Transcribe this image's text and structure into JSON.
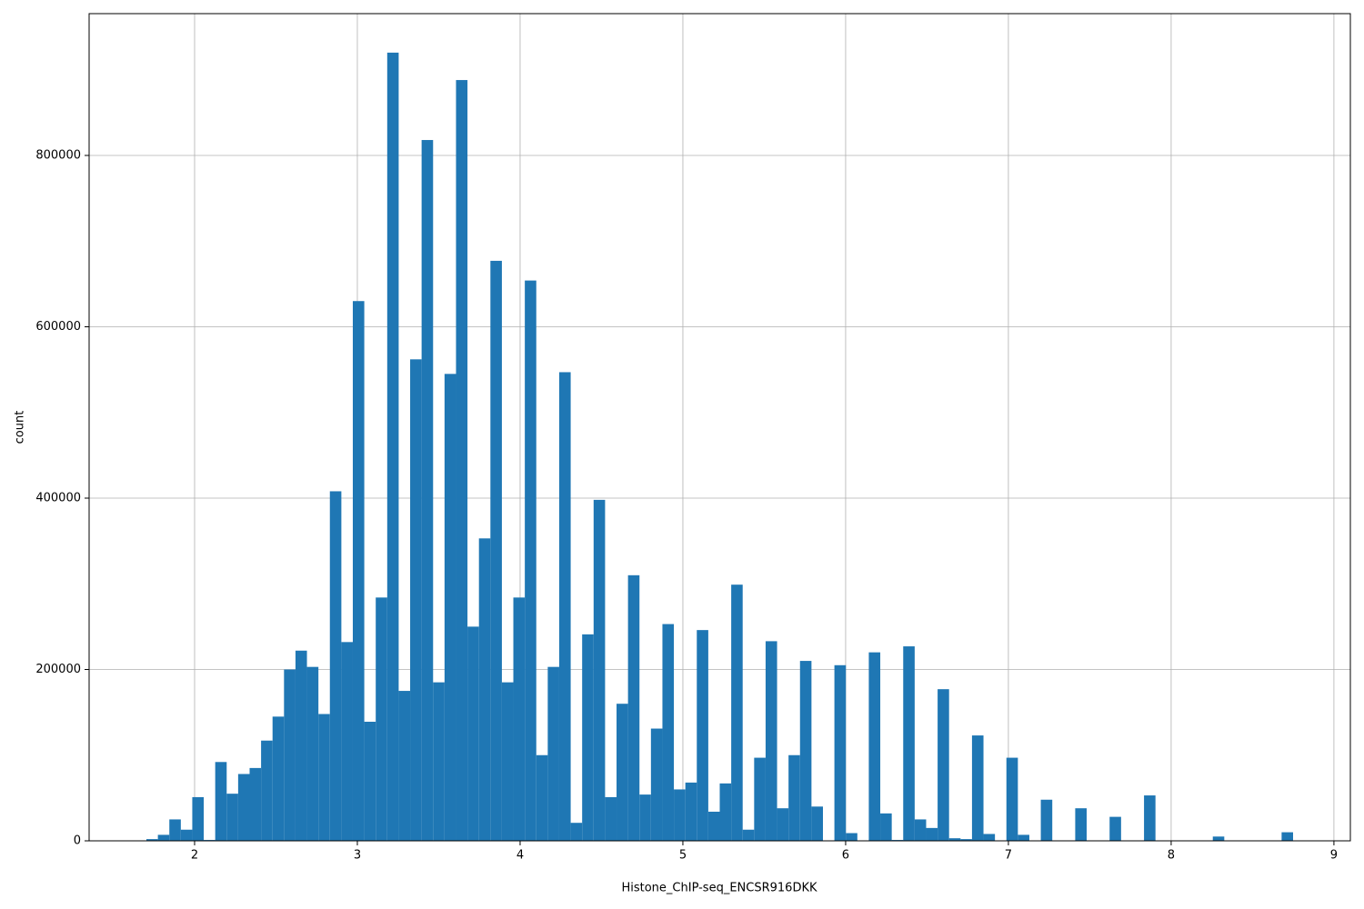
{
  "chart_data": {
    "type": "histogram",
    "x_label": "Histone_ChIP-seq_ENCSR916DKK",
    "y_label": "count",
    "color": "#1f77b4",
    "grid": true,
    "xlim": [
      1.352,
      9.101
    ],
    "ylim": [
      0,
      965517
    ],
    "xticks": [
      2,
      3,
      4,
      5,
      6,
      7,
      8,
      9
    ],
    "yticks": [
      0,
      200000,
      400000,
      600000,
      800000
    ],
    "bins": [
      1.704,
      1.7745,
      1.8449,
      1.9154,
      1.9858,
      2.0563,
      2.1267,
      2.1972,
      2.2676,
      2.3381,
      2.4085,
      2.479,
      2.5494,
      2.6199,
      2.6903,
      2.7608,
      2.8312,
      2.9017,
      2.9721,
      3.0426,
      3.113,
      3.1835,
      3.2539,
      3.3244,
      3.3948,
      3.4653,
      3.5357,
      3.6062,
      3.6766,
      3.7471,
      3.8175,
      3.888,
      3.9584,
      4.0289,
      4.0993,
      4.1698,
      4.2402,
      4.3107,
      4.3811,
      4.4516,
      4.522,
      4.5925,
      4.6629,
      4.7334,
      4.8038,
      4.8743,
      4.9447,
      5.0152,
      5.0856,
      5.1561,
      5.2265,
      5.297,
      5.3674,
      5.4379,
      5.5083,
      5.5788,
      5.6492,
      5.7197,
      5.7901,
      5.8606,
      5.931,
      6.0015,
      6.0719,
      6.1424,
      6.2128,
      6.2833,
      6.3537,
      6.4242,
      6.4946,
      6.5651,
      6.6355,
      6.706,
      6.7764,
      6.8469,
      6.9173,
      6.9878,
      7.0582,
      7.1287,
      7.1991,
      7.2696,
      7.34,
      7.4105,
      7.4809,
      7.5514,
      7.6218,
      7.6923,
      7.7627,
      7.8332,
      7.9036,
      7.9741,
      8.0445,
      8.115,
      8.1854,
      8.2559,
      8.3263,
      8.3968,
      8.4672,
      8.5377,
      8.6081,
      8.6786,
      8.749
    ],
    "values": [
      2000,
      7000,
      25000,
      13000,
      51000,
      1000,
      92000,
      55000,
      78000,
      85000,
      117000,
      145000,
      200000,
      222000,
      203000,
      148000,
      408000,
      232000,
      630000,
      139000,
      284000,
      920000,
      175000,
      562000,
      818000,
      185000,
      545000,
      888000,
      250000,
      353000,
      677000,
      185000,
      284000,
      654000,
      100000,
      203000,
      547000,
      21000,
      241000,
      398000,
      51000,
      160000,
      310000,
      54000,
      131000,
      253000,
      60000,
      68000,
      246000,
      34000,
      67000,
      299000,
      13000,
      97000,
      233000,
      38000,
      100000,
      210000,
      40000,
      0,
      205000,
      9000,
      0,
      220000,
      32000,
      1000,
      227000,
      25000,
      15000,
      177000,
      3000,
      2000,
      123000,
      8000,
      0,
      97000,
      7000,
      0,
      48000,
      0,
      0,
      38000,
      0,
      0,
      28000,
      0,
      0,
      53000,
      0,
      0,
      0,
      0,
      0,
      5000,
      0,
      0,
      0,
      0,
      0,
      10000
    ]
  }
}
